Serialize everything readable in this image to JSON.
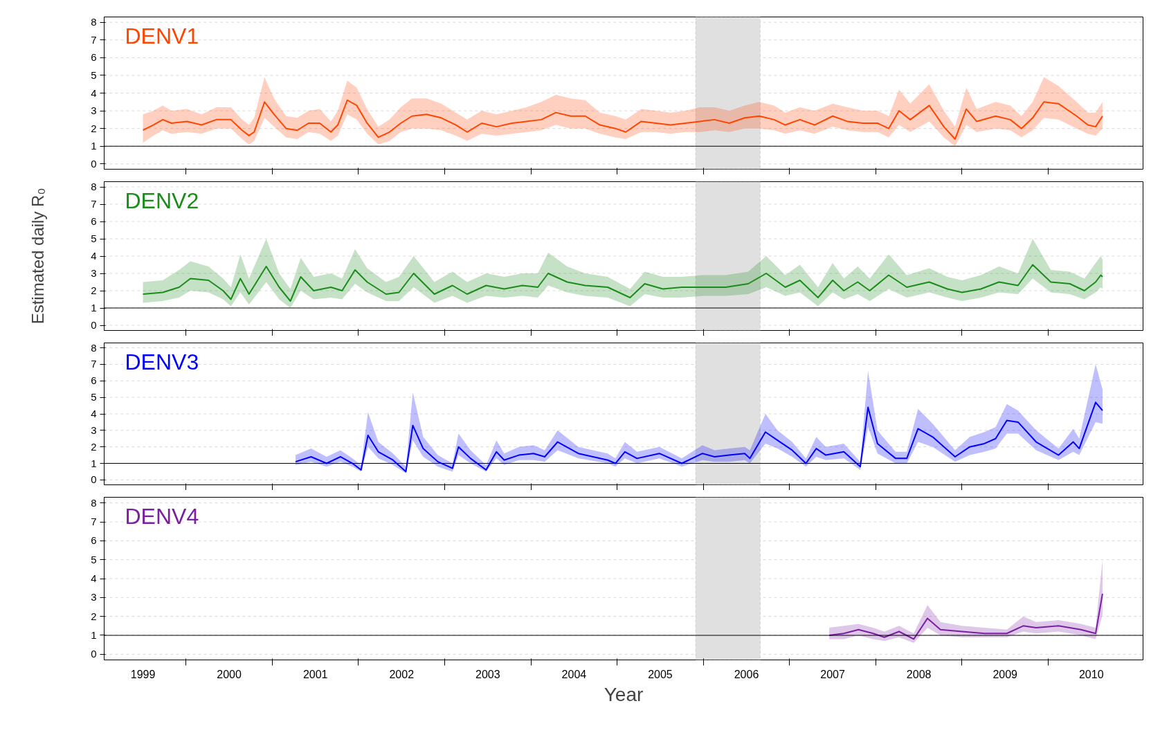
{
  "chart_data": [
    {
      "type": "line",
      "xlim": [
        1998.55,
        2010.6
      ],
      "ylim": [
        -0.3,
        8.3
      ],
      "yticks": [
        0,
        1,
        2,
        3,
        4,
        5,
        6,
        7,
        8
      ],
      "xticks": [
        {
          "value": 1999.5,
          "label": null
        },
        {
          "value": 2000.5,
          "label": null
        },
        {
          "value": 2001.5,
          "label": null
        },
        {
          "value": 2002.5,
          "label": null
        },
        {
          "value": 2003.5,
          "label": null
        },
        {
          "value": 2004.5,
          "label": null
        },
        {
          "value": 2005.5,
          "label": null
        },
        {
          "value": 2006.5,
          "label": null
        },
        {
          "value": 2007.5,
          "label": null
        },
        {
          "value": 2008.5,
          "label": null
        },
        {
          "value": 2009.5,
          "label": null
        }
      ],
      "tick_labels": "y",
      "grid": "y",
      "ref_lines": [
        {
          "axis": "y",
          "value": 1,
          "color": "#000000"
        }
      ],
      "bands": [
        {
          "axis": "x",
          "from": 2005.41,
          "to": 2006.16,
          "color": "#e0e0e0"
        }
      ],
      "series": [
        {
          "name": "DENV1",
          "color": "#ff4500",
          "x": [
            1999.0,
            1999.12,
            1999.23,
            1999.33,
            1999.51,
            1999.68,
            1999.85,
            2000.02,
            2000.15,
            2000.23,
            2000.29,
            2000.41,
            2000.52,
            2000.66,
            2000.79,
            2000.92,
            2001.05,
            2001.18,
            2001.26,
            2001.37,
            2001.48,
            2001.6,
            2001.73,
            2001.86,
            2001.99,
            2002.12,
            2002.29,
            2002.46,
            2002.63,
            2002.76,
            2002.93,
            2003.1,
            2003.28,
            2003.45,
            2003.62,
            2003.79,
            2003.96,
            2004.13,
            2004.3,
            2004.48,
            2004.6,
            2004.78,
            2004.95,
            2005.12,
            2005.29,
            2005.46,
            2005.63,
            2005.8,
            2005.98,
            2006.15,
            2006.32,
            2006.45,
            2006.62,
            2006.79,
            2007.0,
            2007.17,
            2007.35,
            2007.52,
            2007.65,
            2007.77,
            2007.9,
            2008.12,
            2008.29,
            2008.42,
            2008.55,
            2008.67,
            2008.89,
            2009.06,
            2009.19,
            2009.32,
            2009.45,
            2009.62,
            2009.83,
            2009.96,
            2010.05,
            2010.13
          ],
          "values": [
            1.9,
            2.2,
            2.5,
            2.3,
            2.4,
            2.2,
            2.5,
            2.5,
            1.9,
            1.6,
            1.8,
            3.5,
            2.8,
            2.0,
            1.9,
            2.3,
            2.3,
            1.8,
            2.2,
            3.6,
            3.3,
            2.3,
            1.5,
            1.8,
            2.3,
            2.7,
            2.8,
            2.6,
            2.2,
            1.8,
            2.3,
            2.1,
            2.3,
            2.4,
            2.5,
            2.9,
            2.7,
            2.7,
            2.2,
            2.0,
            1.8,
            2.4,
            2.3,
            2.2,
            2.3,
            2.4,
            2.5,
            2.3,
            2.6,
            2.7,
            2.5,
            2.2,
            2.5,
            2.2,
            2.7,
            2.4,
            2.3,
            2.3,
            2.0,
            3.0,
            2.5,
            3.3,
            2.1,
            1.4,
            3.1,
            2.4,
            2.7,
            2.5,
            2.0,
            2.6,
            3.5,
            3.4,
            2.7,
            2.2,
            2.1,
            2.7
          ],
          "lower": [
            1.2,
            1.6,
            1.9,
            1.7,
            1.8,
            1.7,
            2.0,
            2.0,
            1.4,
            1.1,
            1.3,
            2.6,
            2.1,
            1.5,
            1.4,
            1.8,
            1.7,
            1.3,
            1.6,
            2.8,
            2.5,
            1.7,
            1.1,
            1.3,
            1.8,
            2.0,
            2.0,
            1.9,
            1.6,
            1.3,
            1.7,
            1.6,
            1.7,
            1.8,
            1.9,
            2.2,
            2.0,
            2.0,
            1.7,
            1.5,
            1.4,
            1.8,
            1.8,
            1.7,
            1.8,
            1.8,
            1.9,
            1.8,
            2.0,
            2.0,
            1.9,
            1.7,
            1.9,
            1.7,
            2.1,
            1.9,
            1.8,
            1.8,
            1.5,
            2.2,
            1.8,
            2.4,
            1.5,
            1.0,
            2.2,
            1.8,
            2.0,
            1.9,
            1.5,
            1.9,
            2.6,
            2.5,
            2.0,
            1.7,
            1.6,
            2.0
          ],
          "upper": [
            2.8,
            3.0,
            3.3,
            3.0,
            3.1,
            2.8,
            3.2,
            3.2,
            2.5,
            2.2,
            2.6,
            4.9,
            3.7,
            2.7,
            2.6,
            3.0,
            3.1,
            2.4,
            3.0,
            4.7,
            4.3,
            3.1,
            2.1,
            2.5,
            3.2,
            3.7,
            3.7,
            3.4,
            2.9,
            2.5,
            3.0,
            2.8,
            3.0,
            3.2,
            3.5,
            3.9,
            3.7,
            3.6,
            2.9,
            2.7,
            2.5,
            3.1,
            3.0,
            2.9,
            3.0,
            3.2,
            3.2,
            3.0,
            3.3,
            3.5,
            3.3,
            2.9,
            3.2,
            3.0,
            3.4,
            3.2,
            3.0,
            3.0,
            2.7,
            4.2,
            3.4,
            4.5,
            3.0,
            2.1,
            4.3,
            3.1,
            3.5,
            3.3,
            2.7,
            3.5,
            4.9,
            4.4,
            3.5,
            2.9,
            2.9,
            3.5
          ]
        }
      ]
    },
    {
      "type": "line",
      "xlim": [
        1998.55,
        2010.6
      ],
      "ylim": [
        -0.3,
        8.3
      ],
      "yticks": [
        0,
        1,
        2,
        3,
        4,
        5,
        6,
        7,
        8
      ],
      "xticks": [
        {
          "value": 1999.5,
          "label": null
        },
        {
          "value": 2000.5,
          "label": null
        },
        {
          "value": 2001.5,
          "label": null
        },
        {
          "value": 2002.5,
          "label": null
        },
        {
          "value": 2003.5,
          "label": null
        },
        {
          "value": 2004.5,
          "label": null
        },
        {
          "value": 2005.5,
          "label": null
        },
        {
          "value": 2006.5,
          "label": null
        },
        {
          "value": 2007.5,
          "label": null
        },
        {
          "value": 2008.5,
          "label": null
        },
        {
          "value": 2009.5,
          "label": null
        }
      ],
      "tick_labels": "y",
      "grid": "y",
      "ylabel": "Estimated daily R₀",
      "ref_lines": [
        {
          "axis": "y",
          "value": 1,
          "color": "#000000"
        }
      ],
      "bands": [
        {
          "axis": "x",
          "from": 2005.41,
          "to": 2006.16,
          "color": "#e0e0e0"
        }
      ],
      "series": [
        {
          "name": "DENV2",
          "color": "#1a8c1a",
          "x": [
            1999.0,
            1999.23,
            1999.42,
            1999.55,
            1999.76,
            1999.93,
            2000.02,
            2000.13,
            2000.23,
            2000.43,
            2000.58,
            2000.71,
            2000.83,
            2000.98,
            2001.18,
            2001.31,
            2001.46,
            2001.6,
            2001.82,
            2001.97,
            2002.14,
            2002.38,
            2002.59,
            2002.76,
            2002.98,
            2003.19,
            2003.4,
            2003.58,
            2003.7,
            2003.92,
            2004.13,
            2004.39,
            2004.65,
            2004.82,
            2005.03,
            2005.25,
            2005.5,
            2005.76,
            2006.02,
            2006.23,
            2006.45,
            2006.62,
            2006.83,
            2007.0,
            2007.13,
            2007.29,
            2007.43,
            2007.65,
            2007.86,
            2008.12,
            2008.33,
            2008.5,
            2008.72,
            2008.93,
            2009.15,
            2009.32,
            2009.53,
            2009.75,
            2009.92,
            2010.05,
            2010.11,
            2010.13
          ],
          "values": [
            1.8,
            1.9,
            2.2,
            2.7,
            2.6,
            2.0,
            1.5,
            2.7,
            1.8,
            3.4,
            2.2,
            1.4,
            2.8,
            2.0,
            2.2,
            2.0,
            3.2,
            2.5,
            1.8,
            1.9,
            3.0,
            1.8,
            2.3,
            1.8,
            2.3,
            2.1,
            2.3,
            2.2,
            3.0,
            2.5,
            2.3,
            2.2,
            1.6,
            2.4,
            2.1,
            2.2,
            2.2,
            2.2,
            2.4,
            3.0,
            2.2,
            2.6,
            1.6,
            2.6,
            2.0,
            2.5,
            2.0,
            2.9,
            2.2,
            2.5,
            2.1,
            1.9,
            2.1,
            2.5,
            2.3,
            3.5,
            2.5,
            2.4,
            2.0,
            2.5,
            2.9,
            2.8
          ],
          "lower": [
            1.3,
            1.4,
            1.6,
            2.0,
            1.9,
            1.5,
            1.1,
            1.9,
            1.2,
            2.5,
            1.5,
            1.0,
            2.0,
            1.5,
            1.6,
            1.5,
            2.4,
            1.9,
            1.4,
            1.4,
            2.2,
            1.3,
            1.7,
            1.3,
            1.7,
            1.6,
            1.7,
            1.6,
            2.3,
            1.9,
            1.7,
            1.6,
            1.1,
            1.8,
            1.6,
            1.6,
            1.7,
            1.7,
            1.8,
            2.2,
            1.7,
            1.9,
            1.1,
            1.9,
            1.5,
            1.8,
            1.4,
            2.1,
            1.6,
            1.9,
            1.6,
            1.4,
            1.6,
            1.9,
            1.8,
            2.7,
            1.9,
            1.8,
            1.5,
            1.9,
            2.2,
            2.1
          ],
          "upper": [
            2.5,
            2.6,
            3.2,
            3.7,
            3.4,
            2.7,
            2.2,
            4.1,
            2.7,
            5.0,
            3.0,
            2.1,
            3.9,
            2.8,
            3.0,
            2.7,
            4.4,
            3.3,
            2.5,
            2.8,
            4.0,
            2.5,
            3.1,
            2.5,
            3.0,
            2.8,
            3.0,
            3.0,
            4.2,
            3.4,
            3.0,
            2.8,
            2.1,
            3.1,
            2.8,
            2.8,
            2.9,
            2.9,
            3.1,
            4.0,
            2.9,
            3.5,
            2.2,
            3.6,
            2.7,
            3.4,
            2.7,
            4.1,
            2.9,
            3.3,
            2.8,
            2.6,
            2.9,
            3.4,
            3.0,
            5.0,
            3.2,
            3.1,
            2.7,
            3.6,
            4.0,
            3.8
          ]
        }
      ]
    },
    {
      "type": "line",
      "xlim": [
        1998.55,
        2010.6
      ],
      "ylim": [
        -0.3,
        8.3
      ],
      "yticks": [
        0,
        1,
        2,
        3,
        4,
        5,
        6,
        7,
        8
      ],
      "xticks": [
        {
          "value": 1999.5,
          "label": null
        },
        {
          "value": 2000.5,
          "label": null
        },
        {
          "value": 2001.5,
          "label": null
        },
        {
          "value": 2002.5,
          "label": null
        },
        {
          "value": 2003.5,
          "label": null
        },
        {
          "value": 2004.5,
          "label": null
        },
        {
          "value": 2005.5,
          "label": null
        },
        {
          "value": 2006.5,
          "label": null
        },
        {
          "value": 2007.5,
          "label": null
        },
        {
          "value": 2008.5,
          "label": null
        },
        {
          "value": 2009.5,
          "label": null
        }
      ],
      "tick_labels": "y",
      "grid": "y",
      "ref_lines": [
        {
          "axis": "y",
          "value": 1,
          "color": "#000000"
        }
      ],
      "bands": [
        {
          "axis": "x",
          "from": 2005.41,
          "to": 2006.16,
          "color": "#e0e0e0"
        }
      ],
      "series": [
        {
          "name": "DENV3",
          "color": "#0000ff",
          "x": [
            2000.77,
            2000.95,
            2001.13,
            2001.29,
            2001.43,
            2001.53,
            2001.61,
            2001.73,
            2001.9,
            2002.05,
            2002.13,
            2002.25,
            2002.42,
            2002.59,
            2002.66,
            2002.8,
            2002.98,
            2003.1,
            2003.19,
            2003.36,
            2003.53,
            2003.66,
            2003.81,
            2004.05,
            2004.39,
            2004.48,
            2004.59,
            2004.73,
            2004.99,
            2005.25,
            2005.49,
            2005.63,
            2005.8,
            2005.98,
            2006.04,
            2006.22,
            2006.36,
            2006.53,
            2006.69,
            2006.81,
            2006.92,
            2007.13,
            2007.32,
            2007.41,
            2007.52,
            2007.73,
            2007.86,
            2007.99,
            2008.16,
            2008.42,
            2008.59,
            2008.76,
            2008.89,
            2009.02,
            2009.15,
            2009.36,
            2009.62,
            2009.79,
            2009.86,
            2010.05,
            2010.13
          ],
          "values": [
            1.1,
            1.4,
            1.0,
            1.4,
            1.0,
            0.6,
            2.7,
            1.7,
            1.2,
            0.5,
            3.3,
            1.9,
            1.1,
            0.7,
            2.0,
            1.3,
            0.6,
            1.7,
            1.2,
            1.5,
            1.6,
            1.4,
            2.3,
            1.6,
            1.2,
            1.0,
            1.7,
            1.3,
            1.6,
            1.0,
            1.6,
            1.4,
            1.5,
            1.6,
            1.3,
            2.9,
            2.4,
            1.8,
            1.0,
            1.9,
            1.5,
            1.7,
            0.8,
            4.4,
            2.2,
            1.3,
            1.3,
            3.1,
            2.6,
            1.4,
            2.0,
            2.2,
            2.5,
            3.6,
            3.5,
            2.3,
            1.5,
            2.3,
            1.9,
            4.7,
            4.2
          ],
          "lower": [
            0.9,
            1.1,
            0.8,
            1.1,
            0.8,
            0.5,
            2.0,
            1.3,
            0.9,
            0.4,
            2.4,
            1.4,
            0.8,
            0.5,
            1.5,
            1.0,
            0.5,
            1.3,
            0.9,
            1.2,
            1.2,
            1.1,
            1.8,
            1.3,
            1.0,
            0.8,
            1.3,
            1.0,
            1.3,
            0.8,
            1.2,
            1.1,
            1.1,
            1.2,
            1.0,
            2.2,
            1.9,
            1.4,
            0.8,
            1.4,
            1.2,
            1.3,
            0.6,
            3.2,
            1.6,
            1.0,
            1.0,
            2.3,
            2.0,
            1.1,
            1.5,
            1.7,
            1.9,
            2.8,
            2.8,
            1.8,
            1.2,
            1.7,
            1.5,
            3.5,
            3.4
          ],
          "upper": [
            1.5,
            1.9,
            1.4,
            1.8,
            1.3,
            0.9,
            4.1,
            2.3,
            1.6,
            0.8,
            5.3,
            2.6,
            1.5,
            1.0,
            2.8,
            1.8,
            0.9,
            2.4,
            1.6,
            2.0,
            2.1,
            1.8,
            3.0,
            2.0,
            1.6,
            1.3,
            2.3,
            1.7,
            2.0,
            1.3,
            2.1,
            1.8,
            1.9,
            2.0,
            1.8,
            4.0,
            3.0,
            2.3,
            1.3,
            2.6,
            2.0,
            2.2,
            1.1,
            6.6,
            3.0,
            1.7,
            1.7,
            4.3,
            3.4,
            1.8,
            2.6,
            2.9,
            3.2,
            4.6,
            4.2,
            3.0,
            1.9,
            3.1,
            2.5,
            7.0,
            5.5
          ]
        }
      ]
    },
    {
      "type": "line",
      "xlabel": "Year",
      "xlim": [
        1998.55,
        2010.6
      ],
      "ylim": [
        -0.3,
        8.3
      ],
      "yticks": [
        0,
        1,
        2,
        3,
        4,
        5,
        6,
        7,
        8
      ],
      "xticks": [
        {
          "value": 1999,
          "label": "1999"
        },
        {
          "value": 2000,
          "label": "2000"
        },
        {
          "value": 2001,
          "label": "2001"
        },
        {
          "value": 2002,
          "label": "2002"
        },
        {
          "value": 2003,
          "label": "2003"
        },
        {
          "value": 2004,
          "label": "2004"
        },
        {
          "value": 2005,
          "label": "2005"
        },
        {
          "value": 2006,
          "label": "2006"
        },
        {
          "value": 2007,
          "label": "2007"
        },
        {
          "value": 2008,
          "label": "2008"
        },
        {
          "value": 2009,
          "label": "2009"
        },
        {
          "value": 2010,
          "label": "2010"
        },
        {
          "value": 1999.5,
          "label": null
        },
        {
          "value": 2000.5,
          "label": null
        },
        {
          "value": 2001.5,
          "label": null
        },
        {
          "value": 2002.5,
          "label": null
        },
        {
          "value": 2003.5,
          "label": null
        },
        {
          "value": 2004.5,
          "label": null
        },
        {
          "value": 2005.5,
          "label": null
        },
        {
          "value": 2006.5,
          "label": null
        },
        {
          "value": 2007.5,
          "label": null
        },
        {
          "value": 2008.5,
          "label": null
        },
        {
          "value": 2009.5,
          "label": null
        }
      ],
      "grid": "y",
      "ref_lines": [
        {
          "axis": "y",
          "value": 1,
          "color": "#000000"
        }
      ],
      "bands": [
        {
          "axis": "x",
          "from": 2005.41,
          "to": 2006.16,
          "color": "#e0e0e0"
        }
      ],
      "series": [
        {
          "name": "DENV4",
          "color": "#7b1fa2",
          "x": [
            2006.96,
            2007.13,
            2007.3,
            2007.47,
            2007.6,
            2007.77,
            2007.94,
            2008.1,
            2008.25,
            2008.5,
            2008.76,
            2009.02,
            2009.21,
            2009.36,
            2009.62,
            2009.88,
            2010.05,
            2010.13
          ],
          "values": [
            1.0,
            1.1,
            1.3,
            1.1,
            0.9,
            1.2,
            0.8,
            1.9,
            1.3,
            1.2,
            1.1,
            1.1,
            1.5,
            1.4,
            1.5,
            1.3,
            1.1,
            3.2
          ],
          "lower": [
            0.8,
            0.8,
            1.0,
            0.8,
            0.7,
            0.9,
            0.6,
            1.4,
            1.0,
            0.9,
            0.9,
            0.9,
            1.2,
            1.1,
            1.2,
            1.0,
            0.8,
            2.1
          ],
          "upper": [
            1.4,
            1.5,
            1.6,
            1.4,
            1.2,
            1.5,
            1.1,
            2.6,
            1.7,
            1.5,
            1.4,
            1.3,
            2.0,
            1.7,
            1.8,
            1.6,
            1.4,
            5.0
          ]
        }
      ]
    }
  ]
}
